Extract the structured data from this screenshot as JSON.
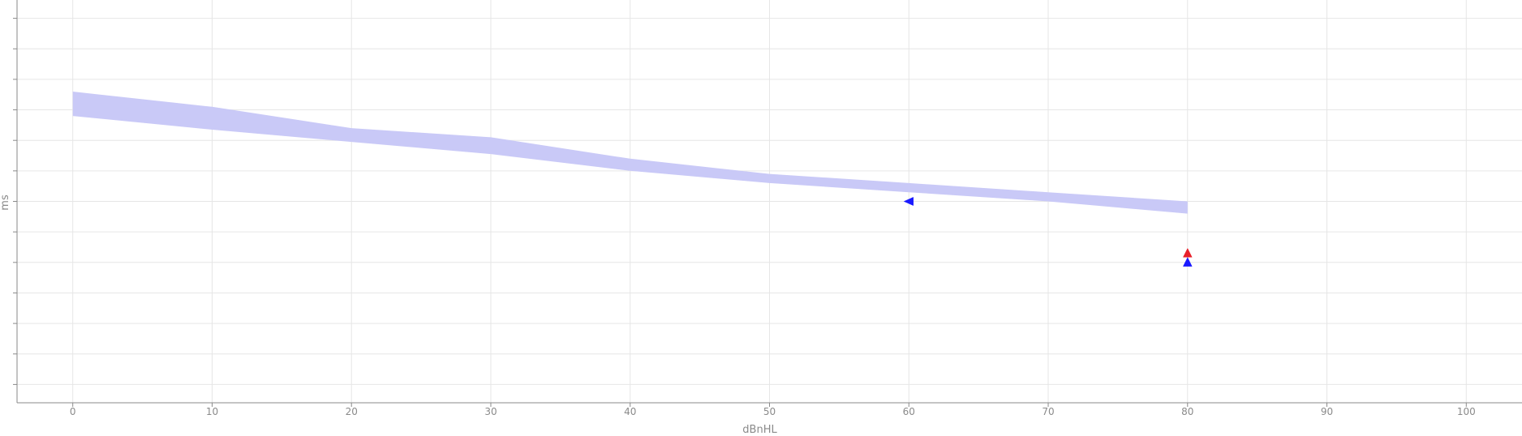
{
  "chart_data": {
    "type": "area",
    "xlabel": "dBnHL",
    "ylabel": "ms",
    "xlim": [
      -4,
      104
    ],
    "ylim": [
      -0.6,
      12.6
    ],
    "x_ticks": [
      "0",
      "10",
      "20",
      "30",
      "40",
      "50",
      "60",
      "70",
      "80",
      "90",
      "100"
    ],
    "y_ticks": [
      0,
      1,
      2,
      3,
      4,
      5,
      6,
      7,
      8,
      9,
      10,
      11,
      12,
      13
    ],
    "grid": true,
    "colors": {
      "band": "#c9c9f7",
      "marker_blue": "#1a1aff",
      "marker_red": "#e8202a",
      "grid": "#e6e6e6",
      "axis": "#8a8a8a"
    },
    "band": {
      "x": [
        0,
        10,
        20,
        30,
        40,
        50,
        60,
        70,
        80
      ],
      "upper": [
        9.6,
        9.1,
        8.4,
        8.1,
        7.4,
        6.9,
        6.6,
        6.3,
        6.0
      ],
      "lower": [
        8.8,
        8.35,
        7.95,
        7.55,
        7.0,
        6.6,
        6.3,
        6.0,
        5.6
      ]
    },
    "markers": [
      {
        "x": 60,
        "y": 6.0,
        "shape": "triangle-left",
        "color": "blue"
      },
      {
        "x": 80,
        "y": 4.3,
        "shape": "triangle-up",
        "color": "red"
      },
      {
        "x": 80,
        "y": 4.0,
        "shape": "triangle-up",
        "color": "blue"
      }
    ]
  }
}
